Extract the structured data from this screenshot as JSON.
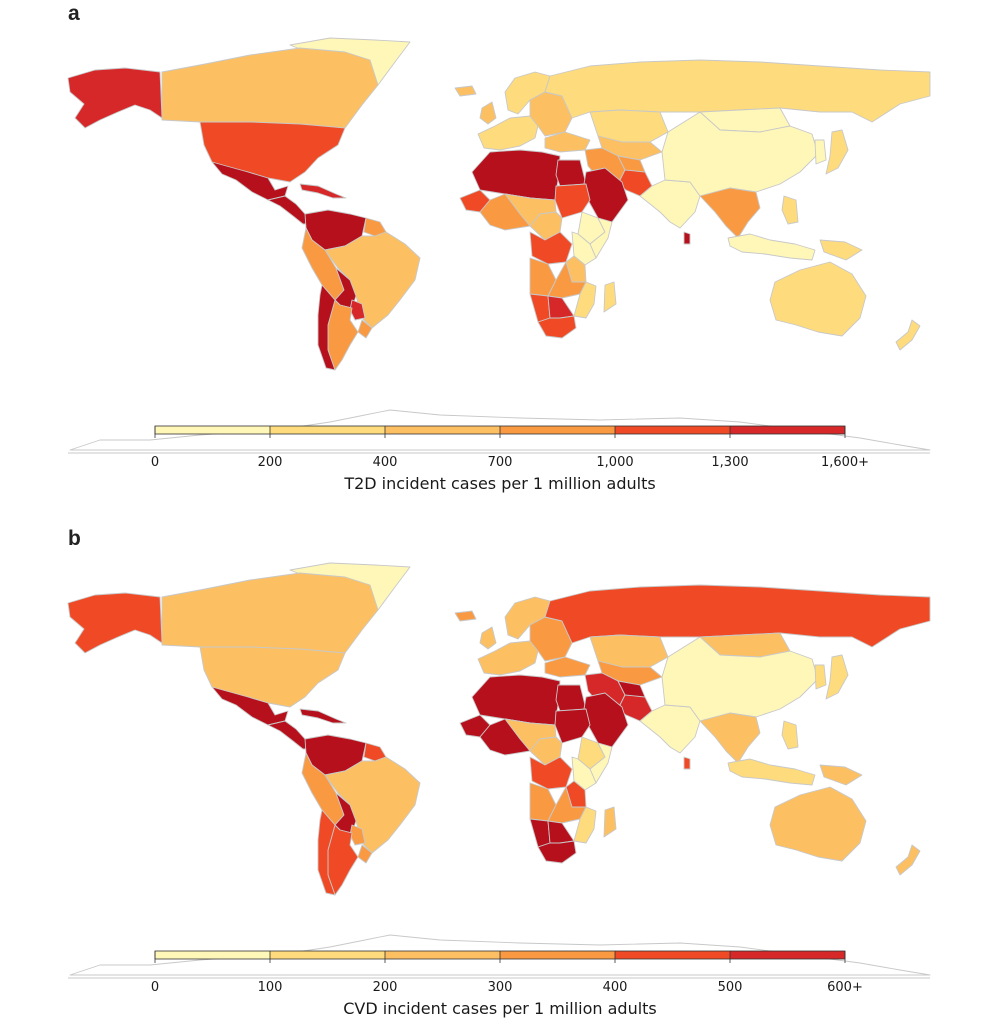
{
  "colors": {
    "scale": [
      "#fff7b8",
      "#fedb7c",
      "#fcc063",
      "#f99a42",
      "#ef4a25",
      "#d62729",
      "#b7101d"
    ],
    "ocean": "#ffffff",
    "border": "#c8c8c8",
    "antarctica_fill": "#ffffff"
  },
  "panels": [
    {
      "letter": "a",
      "caption": "T2D incident cases per 1 million adults",
      "scale_ticks": [
        "0",
        "200",
        "400",
        "700",
        "1,000",
        "1,300",
        "1,600+"
      ],
      "regions": {
        "alaska": 5,
        "canada": 2,
        "usa": 4,
        "mexico": 6,
        "central_america": 6,
        "caribbean": 5,
        "greenland": 0,
        "venezuela_colombia": 6,
        "ecuador_peru": 3,
        "brazil": 2,
        "bolivia": 6,
        "paraguay": 5,
        "argentina": 3,
        "chile": 6,
        "uruguay": 3,
        "guyana": 3,
        "iceland": 2,
        "uk": 2,
        "western_europe": 1,
        "eastern_europe": 2,
        "scandinavia": 1,
        "russia": 1,
        "kazakhstan": 1,
        "central_asia": 2,
        "turkey": 2,
        "iran": 3,
        "afghanistan": 3,
        "pakistan": 4,
        "india": 0,
        "china": 0,
        "mongolia": 0,
        "sea_mainland": 3,
        "japan": 1,
        "korea": 0,
        "indonesia": 0,
        "philippines": 1,
        "papua": 1,
        "australia": 1,
        "new_zealand": 1,
        "north_africa": 6,
        "egypt": 6,
        "arabia": 6,
        "west_africa": 3,
        "west_coast": 4,
        "sahel": 2,
        "sudan": 4,
        "ethiopia": 0,
        "somalia": 0,
        "central_africa": 2,
        "congo": 4,
        "kenya": 0,
        "tanzania": 2,
        "angola": 3,
        "zambia": 3,
        "mozambique": 1,
        "namibia": 4,
        "botswana": 5,
        "south_africa": 4,
        "madagascar": 1,
        "sri_lanka": 6
      }
    },
    {
      "letter": "b",
      "caption": "CVD incident cases per 1 million adults",
      "scale_ticks": [
        "0",
        "100",
        "200",
        "300",
        "400",
        "500",
        "600+"
      ],
      "regions": {
        "alaska": 4,
        "canada": 2,
        "usa": 2,
        "mexico": 6,
        "central_america": 6,
        "caribbean": 6,
        "greenland": 0,
        "venezuela_colombia": 6,
        "ecuador_peru": 3,
        "brazil": 2,
        "bolivia": 6,
        "paraguay": 3,
        "argentina": 4,
        "chile": 4,
        "uruguay": 3,
        "guyana": 4,
        "iceland": 3,
        "uk": 2,
        "western_europe": 2,
        "eastern_europe": 3,
        "scandinavia": 2,
        "russia": 4,
        "kazakhstan": 2,
        "central_asia": 3,
        "turkey": 3,
        "iran": 5,
        "afghanistan": 6,
        "pakistan": 5,
        "india": 0,
        "china": 0,
        "mongolia": 2,
        "sea_mainland": 2,
        "japan": 1,
        "korea": 1,
        "indonesia": 1,
        "philippines": 1,
        "papua": 2,
        "australia": 2,
        "new_zealand": 2,
        "north_africa": 6,
        "egypt": 6,
        "arabia": 6,
        "west_africa": 6,
        "west_coast": 6,
        "sahel": 2,
        "sudan": 6,
        "ethiopia": 1,
        "somalia": 0,
        "central_africa": 2,
        "congo": 4,
        "kenya": 0,
        "tanzania": 4,
        "angola": 3,
        "zambia": 3,
        "mozambique": 1,
        "namibia": 6,
        "botswana": 6,
        "south_africa": 6,
        "madagascar": 2,
        "sri_lanka": 4
      }
    }
  ]
}
